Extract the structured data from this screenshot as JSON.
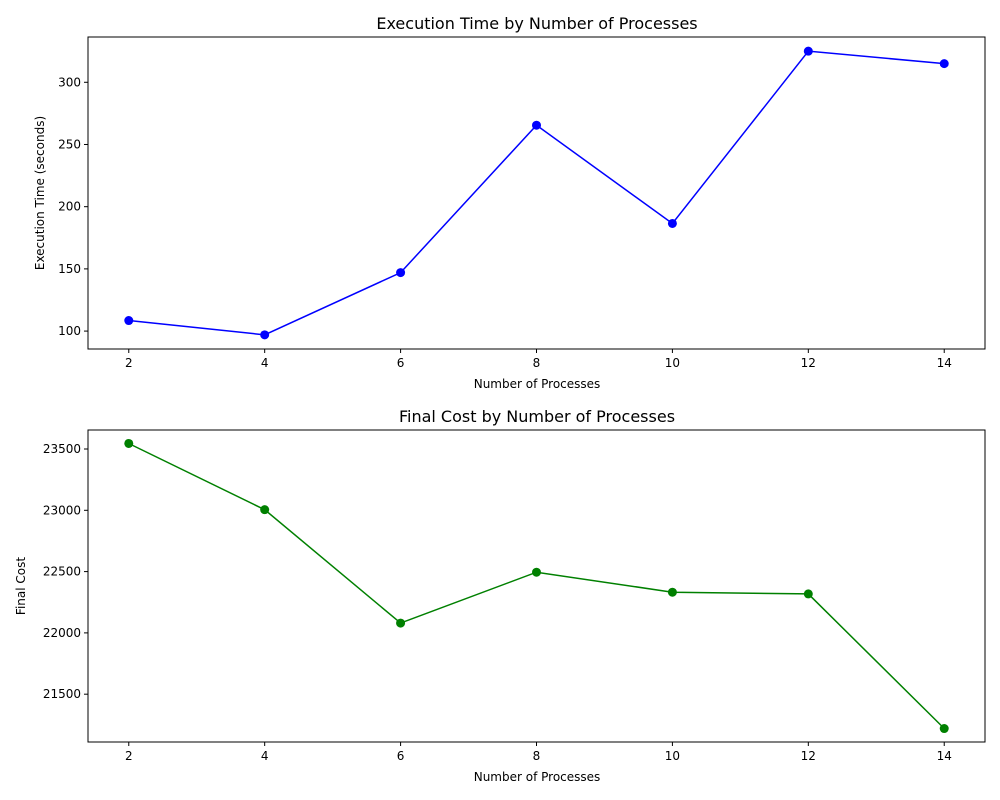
{
  "chart_data": [
    {
      "type": "line",
      "title": "Execution Time by Number of Processes",
      "xlabel": "Number of Processes",
      "ylabel": "Execution Time (seconds)",
      "x": [
        2,
        4,
        6,
        8,
        10,
        12,
        14
      ],
      "series": [
        {
          "values": [
            108.5,
            97,
            147,
            265.5,
            186.5,
            325,
            315
          ],
          "color": "#0000ff"
        }
      ],
      "xlim": [
        1.4,
        14.6
      ],
      "ylim": [
        85.6,
        336.4
      ],
      "xticks": [
        2,
        4,
        6,
        8,
        10,
        12,
        14
      ],
      "yticks": [
        100,
        150,
        200,
        250,
        300
      ],
      "grid": false
    },
    {
      "type": "line",
      "title": "Final Cost by Number of Processes",
      "xlabel": "Number of Processes",
      "ylabel": "Final Cost",
      "x": [
        2,
        4,
        6,
        8,
        10,
        12,
        14
      ],
      "series": [
        {
          "values": [
            23545,
            23005,
            22080,
            22495,
            22332,
            22318,
            21220
          ],
          "color": "#008000"
        }
      ],
      "xlim": [
        1.4,
        14.6
      ],
      "ylim": [
        21110,
        23655
      ],
      "xticks": [
        2,
        4,
        6,
        8,
        10,
        12,
        14
      ],
      "yticks": [
        21500,
        22000,
        22500,
        23000,
        23500
      ],
      "grid": false
    }
  ]
}
